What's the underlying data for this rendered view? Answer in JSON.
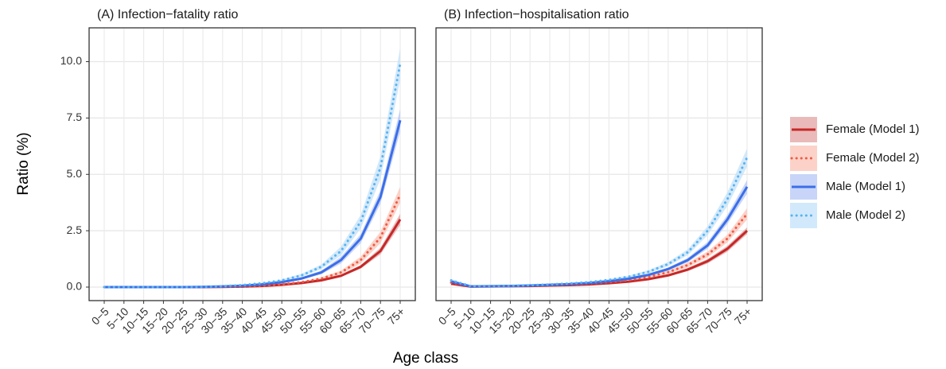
{
  "shared": {
    "ylabel": "Ratio (%)",
    "xlabel": "Age class"
  },
  "chart_data": [
    {
      "type": "line",
      "title": "(A) Infection−fatality ratio",
      "categories": [
        "0−5",
        "5−10",
        "10−15",
        "15−20",
        "20−25",
        "25−30",
        "30−35",
        "35−40",
        "40−45",
        "45−50",
        "50−55",
        "55−60",
        "60−65",
        "65−70",
        "70−75",
        "75+"
      ],
      "ylim": [
        -0.6,
        11.5
      ],
      "yticks": [
        {
          "value": 0,
          "label": "0.0"
        },
        2.5,
        {
          "value": 5,
          "label": "5.0"
        },
        7.5,
        {
          "value": 10,
          "label": "10.0"
        }
      ],
      "grid": true,
      "series": [
        {
          "name": "Female (Model 1)",
          "color": "#c62828",
          "band_color": "#e3a3a3",
          "style": "solid",
          "values": [
            0,
            0,
            0,
            0,
            0,
            0,
            0.01,
            0.02,
            0.05,
            0.1,
            0.18,
            0.3,
            0.5,
            0.9,
            1.6,
            3.0
          ],
          "lower": [
            0,
            0,
            0,
            0,
            0,
            0,
            0.01,
            0.02,
            0.04,
            0.09,
            0.16,
            0.27,
            0.45,
            0.82,
            1.45,
            2.75
          ],
          "upper": [
            0,
            0,
            0,
            0,
            0,
            0,
            0.01,
            0.02,
            0.06,
            0.11,
            0.2,
            0.33,
            0.55,
            0.98,
            1.75,
            3.25
          ]
        },
        {
          "name": "Female (Model 2)",
          "color": "#ef5a46",
          "band_color": "#fbc3b6",
          "style": "dotted",
          "values": [
            0,
            0,
            0,
            0,
            0,
            0,
            0.01,
            0.03,
            0.06,
            0.12,
            0.22,
            0.38,
            0.65,
            1.2,
            2.2,
            4.1
          ],
          "lower": [
            0,
            0,
            0,
            0,
            0,
            0,
            0.01,
            0.02,
            0.05,
            0.1,
            0.19,
            0.33,
            0.57,
            1.05,
            1.95,
            3.75
          ],
          "upper": [
            0,
            0,
            0,
            0,
            0,
            0,
            0.01,
            0.04,
            0.07,
            0.14,
            0.25,
            0.43,
            0.73,
            1.35,
            2.45,
            4.45
          ]
        },
        {
          "name": "Male (Model 1)",
          "color": "#3b6ee8",
          "band_color": "#b5c7f5",
          "style": "solid",
          "values": [
            0,
            0,
            0,
            0,
            0,
            0.01,
            0.03,
            0.06,
            0.12,
            0.22,
            0.38,
            0.65,
            1.2,
            2.15,
            4.0,
            7.4
          ],
          "lower": [
            0,
            0,
            0,
            0,
            0,
            0.01,
            0.02,
            0.05,
            0.1,
            0.19,
            0.33,
            0.57,
            1.05,
            1.95,
            3.7,
            6.9
          ],
          "upper": [
            0,
            0,
            0,
            0,
            0,
            0.01,
            0.04,
            0.07,
            0.14,
            0.25,
            0.43,
            0.73,
            1.35,
            2.35,
            4.3,
            7.9
          ]
        },
        {
          "name": "Male (Model 2)",
          "color": "#58b2f0",
          "band_color": "#c3e2fa",
          "style": "dotted",
          "values": [
            0,
            0,
            0,
            0,
            0,
            0.01,
            0.04,
            0.09,
            0.17,
            0.3,
            0.52,
            0.9,
            1.6,
            2.9,
            5.3,
            9.9
          ],
          "lower": [
            0,
            0,
            0,
            0,
            0,
            0.01,
            0.03,
            0.07,
            0.14,
            0.26,
            0.45,
            0.8,
            1.4,
            2.6,
            4.8,
            9.2
          ],
          "upper": [
            0,
            0,
            0,
            0,
            0,
            0.01,
            0.05,
            0.11,
            0.2,
            0.34,
            0.59,
            1.0,
            1.8,
            3.2,
            5.8,
            10.6
          ]
        }
      ]
    },
    {
      "type": "line",
      "title": "(B) Infection−hospitalisation ratio",
      "categories": [
        "0−5",
        "5−10",
        "10−15",
        "15−20",
        "20−25",
        "25−30",
        "30−35",
        "35−40",
        "40−45",
        "45−50",
        "50−55",
        "55−60",
        "60−65",
        "65−70",
        "70−75",
        "75+"
      ],
      "ylim": [
        -0.6,
        11.5
      ],
      "gridticks": [
        0,
        2.5,
        5,
        7.5,
        10
      ],
      "grid": true,
      "series": [
        {
          "color": "#c62828",
          "band_color": "#e3a3a3",
          "style": "solid",
          "values": [
            0.15,
            0.02,
            0.03,
            0.04,
            0.05,
            0.07,
            0.09,
            0.12,
            0.17,
            0.24,
            0.35,
            0.52,
            0.78,
            1.15,
            1.7,
            2.5
          ],
          "lower": [
            0.12,
            0.01,
            0.02,
            0.03,
            0.04,
            0.06,
            0.08,
            0.1,
            0.15,
            0.21,
            0.31,
            0.47,
            0.71,
            1.05,
            1.57,
            2.35
          ],
          "upper": [
            0.18,
            0.03,
            0.04,
            0.05,
            0.06,
            0.08,
            0.1,
            0.14,
            0.19,
            0.27,
            0.39,
            0.57,
            0.85,
            1.25,
            1.83,
            2.65
          ]
        },
        {
          "color": "#ef5a46",
          "band_color": "#fbc3b6",
          "style": "dotted",
          "values": [
            0.2,
            0.03,
            0.04,
            0.05,
            0.07,
            0.09,
            0.12,
            0.16,
            0.22,
            0.31,
            0.45,
            0.66,
            0.98,
            1.45,
            2.15,
            3.25
          ],
          "lower": [
            0.16,
            0.02,
            0.03,
            0.04,
            0.06,
            0.08,
            0.1,
            0.14,
            0.19,
            0.27,
            0.4,
            0.59,
            0.88,
            1.32,
            1.98,
            3.0
          ],
          "upper": [
            0.24,
            0.04,
            0.05,
            0.06,
            0.08,
            0.1,
            0.14,
            0.18,
            0.25,
            0.35,
            0.5,
            0.73,
            1.08,
            1.58,
            2.32,
            3.5
          ]
        },
        {
          "color": "#3b6ee8",
          "band_color": "#b5c7f5",
          "style": "solid",
          "values": [
            0.25,
            0.03,
            0.04,
            0.05,
            0.07,
            0.1,
            0.13,
            0.18,
            0.26,
            0.37,
            0.54,
            0.8,
            1.2,
            1.85,
            3.0,
            4.45
          ],
          "lower": [
            0.2,
            0.02,
            0.03,
            0.04,
            0.06,
            0.09,
            0.11,
            0.16,
            0.23,
            0.33,
            0.49,
            0.73,
            1.1,
            1.7,
            2.8,
            4.15
          ],
          "upper": [
            0.3,
            0.04,
            0.05,
            0.06,
            0.08,
            0.11,
            0.15,
            0.2,
            0.29,
            0.41,
            0.59,
            0.87,
            1.3,
            2.0,
            3.2,
            4.75
          ]
        },
        {
          "color": "#58b2f0",
          "band_color": "#c3e2fa",
          "style": "dotted",
          "values": [
            0.3,
            0.04,
            0.05,
            0.06,
            0.08,
            0.12,
            0.16,
            0.22,
            0.32,
            0.46,
            0.68,
            1.02,
            1.55,
            2.5,
            3.9,
            5.75
          ],
          "lower": [
            0.24,
            0.03,
            0.04,
            0.05,
            0.07,
            0.1,
            0.14,
            0.19,
            0.28,
            0.41,
            0.61,
            0.93,
            1.42,
            2.3,
            3.6,
            5.35
          ],
          "upper": [
            0.36,
            0.05,
            0.06,
            0.07,
            0.09,
            0.14,
            0.18,
            0.25,
            0.36,
            0.51,
            0.75,
            1.11,
            1.68,
            2.7,
            4.2,
            6.15
          ]
        }
      ]
    }
  ]
}
